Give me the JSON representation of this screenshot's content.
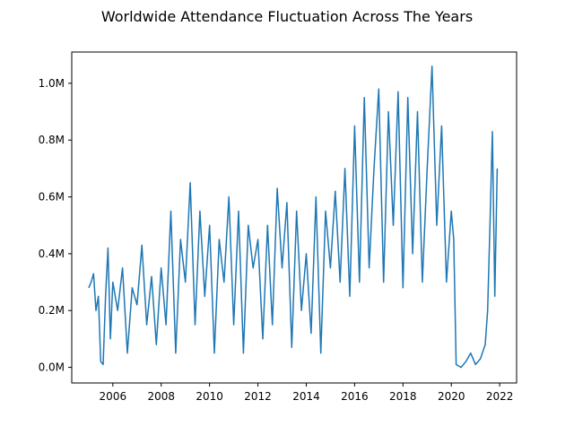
{
  "chart_data": {
    "type": "line",
    "title": "Worldwide Attendance Fluctuation Across The Years",
    "xlabel": "",
    "ylabel": "",
    "grid": false,
    "legend": "none",
    "x_range": [
      2004.3,
      2022.7
    ],
    "y_range": [
      -0.055,
      1.11
    ],
    "y_unit": "M",
    "x_ticks": [
      2006,
      2008,
      2010,
      2012,
      2014,
      2016,
      2018,
      2020,
      2022
    ],
    "x_tick_labels": [
      "2006",
      "2008",
      "2010",
      "2012",
      "2014",
      "2016",
      "2018",
      "2020",
      "2022"
    ],
    "y_ticks": [
      0.0,
      0.2,
      0.4,
      0.6,
      0.8,
      1.0
    ],
    "y_tick_labels": [
      "0.0M",
      "0.2M",
      "0.4M",
      "0.6M",
      "0.8M",
      "1.0M"
    ],
    "series": [
      {
        "color": "#1f77b4",
        "x": [
          2005.0,
          2005.1,
          2005.2,
          2005.3,
          2005.4,
          2005.5,
          2005.6,
          2005.7,
          2005.8,
          2005.9,
          2006.0,
          2006.2,
          2006.4,
          2006.6,
          2006.8,
          2007.0,
          2007.2,
          2007.4,
          2007.6,
          2007.8,
          2008.0,
          2008.2,
          2008.4,
          2008.6,
          2008.8,
          2009.0,
          2009.2,
          2009.4,
          2009.6,
          2009.8,
          2010.0,
          2010.2,
          2010.4,
          2010.6,
          2010.8,
          2011.0,
          2011.2,
          2011.4,
          2011.6,
          2011.8,
          2012.0,
          2012.2,
          2012.4,
          2012.6,
          2012.8,
          2013.0,
          2013.2,
          2013.4,
          2013.6,
          2013.8,
          2014.0,
          2014.2,
          2014.4,
          2014.6,
          2014.8,
          2015.0,
          2015.2,
          2015.4,
          2015.6,
          2015.8,
          2016.0,
          2016.2,
          2016.4,
          2016.6,
          2016.8,
          2017.0,
          2017.2,
          2017.4,
          2017.6,
          2017.8,
          2018.0,
          2018.2,
          2018.4,
          2018.6,
          2018.8,
          2019.0,
          2019.2,
          2019.4,
          2019.6,
          2019.8,
          2020.0,
          2020.1,
          2020.2,
          2020.4,
          2020.6,
          2020.8,
          2021.0,
          2021.2,
          2021.4,
          2021.5,
          2021.6,
          2021.7,
          2021.8,
          2021.9
        ],
        "y": [
          0.28,
          0.3,
          0.33,
          0.2,
          0.25,
          0.02,
          0.01,
          0.25,
          0.42,
          0.1,
          0.3,
          0.2,
          0.35,
          0.05,
          0.28,
          0.22,
          0.43,
          0.15,
          0.32,
          0.08,
          0.35,
          0.15,
          0.55,
          0.05,
          0.45,
          0.3,
          0.65,
          0.15,
          0.55,
          0.25,
          0.5,
          0.05,
          0.45,
          0.3,
          0.6,
          0.15,
          0.55,
          0.05,
          0.5,
          0.35,
          0.45,
          0.1,
          0.5,
          0.15,
          0.63,
          0.35,
          0.58,
          0.07,
          0.55,
          0.2,
          0.4,
          0.12,
          0.6,
          0.05,
          0.55,
          0.35,
          0.62,
          0.3,
          0.7,
          0.25,
          0.85,
          0.3,
          0.95,
          0.35,
          0.7,
          0.98,
          0.3,
          0.9,
          0.5,
          0.97,
          0.28,
          0.95,
          0.4,
          0.9,
          0.3,
          0.7,
          1.06,
          0.5,
          0.85,
          0.3,
          0.55,
          0.45,
          0.01,
          0.0,
          0.02,
          0.05,
          0.01,
          0.03,
          0.08,
          0.2,
          0.5,
          0.83,
          0.25,
          0.7
        ]
      }
    ]
  }
}
